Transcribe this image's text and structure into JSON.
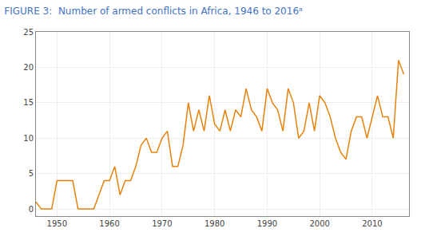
{
  "chart_data": {
    "type": "line",
    "title": "FIGURE 3:  Number of armed conflicts in Africa, 1946 to 2016ᵃ",
    "x": [
      1946,
      1947,
      1948,
      1949,
      1950,
      1951,
      1952,
      1953,
      1954,
      1955,
      1956,
      1957,
      1958,
      1959,
      1960,
      1961,
      1962,
      1963,
      1964,
      1965,
      1966,
      1967,
      1968,
      1969,
      1970,
      1971,
      1972,
      1973,
      1974,
      1975,
      1976,
      1977,
      1978,
      1979,
      1980,
      1981,
      1982,
      1983,
      1984,
      1985,
      1986,
      1987,
      1988,
      1989,
      1990,
      1991,
      1992,
      1993,
      1994,
      1995,
      1996,
      1997,
      1998,
      1999,
      2000,
      2001,
      2002,
      2003,
      2004,
      2005,
      2006,
      2007,
      2008,
      2009,
      2010,
      2011,
      2012,
      2013,
      2014,
      2015,
      2016
    ],
    "values": [
      1,
      0,
      0,
      0,
      4,
      4,
      4,
      4,
      0,
      0,
      0,
      0,
      2,
      4,
      4,
      6,
      2,
      4,
      4,
      6,
      9,
      10,
      8,
      8,
      10,
      11,
      6,
      6,
      9,
      15,
      11,
      14,
      11,
      16,
      12,
      11,
      14,
      11,
      14,
      13,
      17,
      14,
      13,
      11,
      17,
      15,
      14,
      11,
      17,
      15,
      10,
      11,
      15,
      11,
      16,
      15,
      13,
      10,
      8,
      7,
      11,
      13,
      13,
      10,
      13,
      16,
      13,
      13,
      10,
      21,
      19
    ],
    "color": "#e8820c",
    "xlim": [
      1946,
      2017
    ],
    "ylim": [
      -1,
      25
    ],
    "xticks": [
      1950,
      1960,
      1970,
      1980,
      1990,
      2000,
      2010
    ],
    "yticks": [
      0,
      5,
      10,
      15,
      20,
      25
    ],
    "grid": true
  }
}
